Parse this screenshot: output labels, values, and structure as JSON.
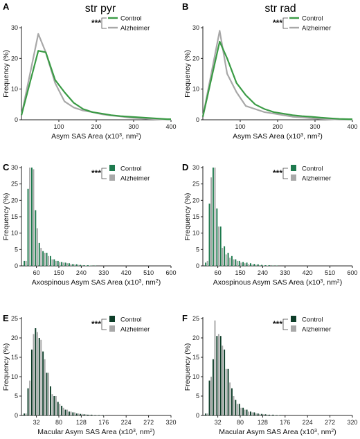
{
  "column_titles": [
    "str pyr",
    "str rad"
  ],
  "significance": "***",
  "colors": {
    "control_line": "#3a9b45",
    "alzheimer_line": "#a8a8a8",
    "control_bar_mid": "#1e7a4e",
    "control_bar_dark": "#0d3d28",
    "alzheimer_bar": "#a8a8a8"
  },
  "chart_data": [
    {
      "panel": "A",
      "type": "line",
      "xlabel": "Asym SAS Area (x10³, nm²)",
      "ylabel": "Frequency (%)",
      "xlim": [
        0,
        400
      ],
      "ylim": [
        0,
        30
      ],
      "xticks": [
        "100",
        "200",
        "300",
        "400"
      ],
      "yticks": [
        "0",
        "10",
        "20",
        "30"
      ],
      "legend": [
        "Control",
        "Alzheimer"
      ],
      "legend_position": "top-right",
      "series": [
        {
          "name": "Control",
          "x": [
            0,
            45,
            65,
            90,
            115,
            140,
            165,
            190,
            215,
            240,
            265,
            290,
            315,
            340,
            365,
            390,
            400
          ],
          "values": [
            1.5,
            22.5,
            22,
            13,
            9,
            5.5,
            3.5,
            2.5,
            2,
            1.5,
            1.2,
            1,
            0.8,
            0.6,
            0.4,
            0.2,
            0.2
          ]
        },
        {
          "name": "Alzheimer",
          "x": [
            0,
            45,
            65,
            90,
            115,
            140,
            165,
            190,
            215,
            240,
            265,
            290,
            315,
            340,
            365,
            390,
            400
          ],
          "values": [
            1.5,
            28,
            22,
            12,
            6,
            4,
            3,
            2.5,
            1.8,
            1.4,
            1.1,
            0.7,
            0.5,
            0.3,
            0.2,
            0.1,
            0.1
          ]
        }
      ]
    },
    {
      "panel": "B",
      "type": "line",
      "xlabel": "Asym SAS Area (x10³, nm²)",
      "ylabel": "Frequency (%)",
      "xlim": [
        0,
        400
      ],
      "ylim": [
        0,
        30
      ],
      "xticks": [
        "100",
        "200",
        "300",
        "400"
      ],
      "yticks": [
        "0",
        "10",
        "20",
        "30"
      ],
      "legend": [
        "Control",
        "Alzheimer"
      ],
      "legend_position": "top-right",
      "series": [
        {
          "name": "Control",
          "x": [
            0,
            45,
            65,
            90,
            115,
            140,
            165,
            190,
            215,
            240,
            265,
            290,
            315,
            340,
            365,
            390,
            400
          ],
          "values": [
            1,
            25.5,
            20,
            12,
            8,
            5,
            3.5,
            2.5,
            2,
            1.5,
            1.2,
            1,
            0.7,
            0.5,
            0.3,
            0.2,
            0.2
          ]
        },
        {
          "name": "Alzheimer",
          "x": [
            0,
            45,
            65,
            90,
            115,
            140,
            165,
            190,
            215,
            240,
            265,
            290,
            315,
            340,
            365,
            390,
            400
          ],
          "values": [
            1,
            29,
            15,
            9,
            4.5,
            3.5,
            2.5,
            2,
            1.5,
            1,
            0.8,
            0.5,
            0.3,
            0.2,
            0.1,
            0.1,
            0.1
          ]
        }
      ]
    },
    {
      "panel": "C",
      "type": "bar",
      "xlabel": "Axospinous Asym SAS Area (x10³, nm²)",
      "ylabel": "Frequency (%)",
      "xlim": [
        0,
        600
      ],
      "ylim": [
        0,
        30
      ],
      "bin_width": 15,
      "xticks": [
        "60",
        "150",
        "240",
        "330",
        "420",
        "510",
        "600"
      ],
      "yticks": [
        "0",
        "5",
        "10",
        "15",
        "20",
        "25",
        "30"
      ],
      "legend": [
        "Control",
        "Alzheimer"
      ],
      "legend_position": "top-right",
      "series": [
        {
          "name": "Control",
          "values": [
            1.5,
            23.5,
            30,
            17,
            7,
            4.5,
            4,
            3,
            2,
            1.5,
            1.2,
            1,
            0.8,
            0.6,
            0.5,
            0.3,
            0.2,
            0.2,
            0.1,
            0.1
          ]
        },
        {
          "name": "Alzheimer",
          "values": [
            1.5,
            30,
            29.5,
            11.5,
            5.5,
            4,
            3,
            2,
            1.5,
            1.2,
            1,
            0.8,
            0.5,
            0.4,
            0.3,
            0.2,
            0.1,
            0.1,
            0,
            0
          ]
        }
      ]
    },
    {
      "panel": "D",
      "type": "bar",
      "xlabel": "Axospinous Asym SAS Area (x10³, nm²)",
      "ylabel": "Frequency (%)",
      "xlim": [
        0,
        600
      ],
      "ylim": [
        0,
        30
      ],
      "bin_width": 15,
      "xticks": [
        "60",
        "150",
        "240",
        "330",
        "420",
        "510",
        "600"
      ],
      "yticks": [
        "0",
        "5",
        "10",
        "15",
        "20",
        "25",
        "30"
      ],
      "legend": [
        "Control",
        "Alzheimer"
      ],
      "legend_position": "top-right",
      "series": [
        {
          "name": "Control",
          "values": [
            1,
            19,
            30,
            17.5,
            12,
            6,
            4,
            3,
            2,
            1.5,
            1.2,
            1,
            0.8,
            0.6,
            0.5,
            0.3,
            0.2,
            0.2,
            0.1,
            0.1
          ]
        },
        {
          "name": "Alzheimer",
          "values": [
            1.5,
            27,
            30,
            12,
            5.5,
            3.5,
            2.5,
            2,
            1.5,
            1,
            0.8,
            0.5,
            0.4,
            0.3,
            0.2,
            0.1,
            0.1,
            0,
            0,
            0
          ]
        }
      ]
    },
    {
      "panel": "E",
      "type": "bar",
      "xlabel": "Macular Asym SAS Area (x10³, nm²)",
      "ylabel": "Frequency (%)",
      "xlim": [
        0,
        320
      ],
      "ylim": [
        0,
        25
      ],
      "bin_width": 8,
      "xticks": [
        "32",
        "80",
        "128",
        "176",
        "224",
        "272",
        "320"
      ],
      "yticks": [
        "0",
        "5",
        "10",
        "15",
        "20",
        "25"
      ],
      "legend": [
        "Control",
        "Alzheimer"
      ],
      "legend_position": "top-right",
      "series": [
        {
          "name": "Control",
          "values": [
            0.5,
            7,
            17,
            22.5,
            20,
            16.5,
            11,
            7.5,
            5,
            3.5,
            2.5,
            1.5,
            1,
            0.8,
            0.5,
            0.4,
            0.3,
            0.2,
            0.2,
            0.1,
            0.1,
            0.1,
            0,
            0
          ]
        },
        {
          "name": "Alzheimer",
          "values": [
            0.5,
            9,
            21,
            21.5,
            19.5,
            14.5,
            11,
            5.5,
            5,
            3,
            2,
            1.5,
            1,
            0.8,
            0.5,
            0.4,
            0.3,
            0.2,
            0.1,
            0.1,
            0.1,
            0.1,
            0,
            0
          ]
        }
      ]
    },
    {
      "panel": "F",
      "type": "bar",
      "xlabel": "Macular Asym SAS Area (x10³, nm²)",
      "ylabel": "Frequency (%)",
      "xlim": [
        0,
        320
      ],
      "ylim": [
        0,
        25
      ],
      "bin_width": 8,
      "xticks": [
        "32",
        "80",
        "128",
        "176",
        "224",
        "272",
        "320"
      ],
      "yticks": [
        "0",
        "5",
        "10",
        "15",
        "20",
        "25"
      ],
      "legend": [
        "Control",
        "Alzheimer"
      ],
      "legend_position": "top-right",
      "series": [
        {
          "name": "Control",
          "values": [
            0.5,
            9,
            14.5,
            20.5,
            20.5,
            17,
            12,
            7,
            4,
            3,
            2,
            1.5,
            1,
            0.8,
            0.5,
            0.4,
            0.3,
            0.2,
            0.2,
            0.1,
            0.1,
            0,
            0,
            0
          ]
        },
        {
          "name": "Alzheimer",
          "values": [
            0.5,
            10,
            24.5,
            21,
            18,
            12,
            8.5,
            5,
            3,
            2,
            1.5,
            1,
            0.8,
            0.5,
            0.4,
            0.3,
            0.2,
            0.1,
            0.1,
            0.1,
            0,
            0,
            0,
            0
          ]
        }
      ]
    }
  ]
}
